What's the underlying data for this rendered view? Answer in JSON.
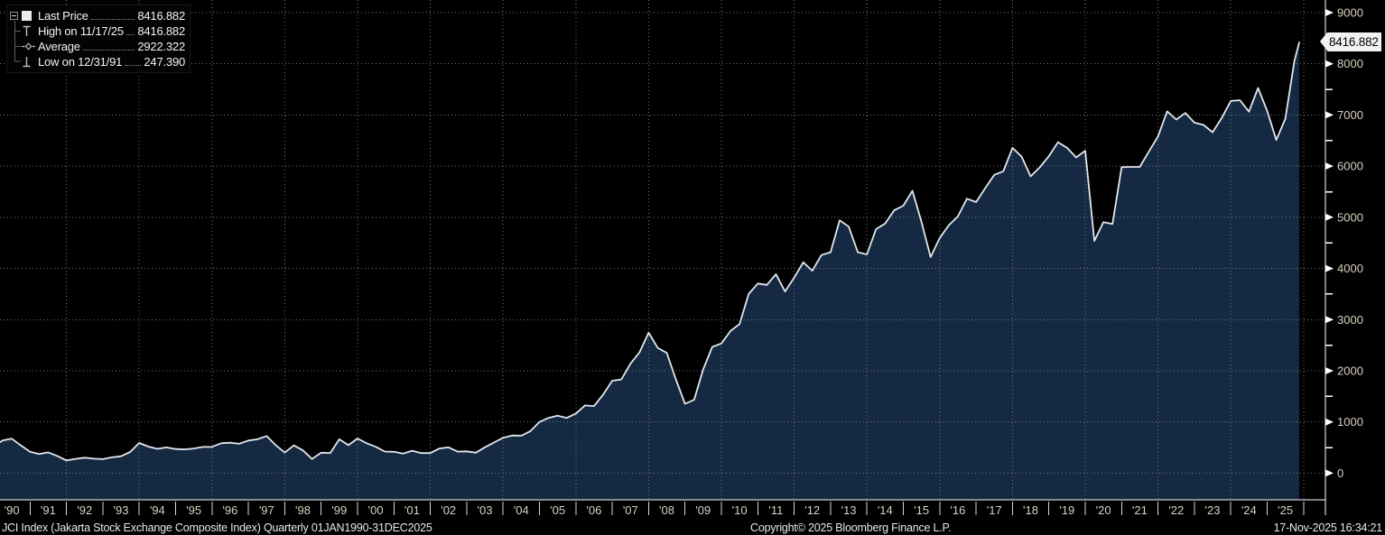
{
  "legend": {
    "items": [
      {
        "icon": "solid-square",
        "label": "Last Price",
        "value": "8416.882"
      },
      {
        "icon": "high-marker",
        "label": "High on 11/17/25",
        "value": "8416.882"
      },
      {
        "icon": "average-marker",
        "label": "Average",
        "value": "2922.322"
      },
      {
        "icon": "low-marker",
        "label": "Low on 12/31/91",
        "value": "247.390"
      }
    ]
  },
  "price_axis": {
    "last_label": "8416.882"
  },
  "footer": {
    "left": "JCI Index (Jakarta Stock Exchange Composite Index) Quarterly 01JAN1990-31DEC2025",
    "center": "Copyright© 2025 Bloomberg Finance L.P.",
    "right": "17-Nov-2025 16:34:21"
  },
  "colors": {
    "background": "#000000",
    "area_fill": "#152a42",
    "line": "#e2e7ec",
    "grid": "#6b7680",
    "axis": "#ffffff",
    "tick_label": "#d9d2bf",
    "price_tag_bg": "#f2f2f2",
    "price_tag_text": "#000000"
  },
  "chart_data": {
    "type": "area",
    "title": "JCI Index (Jakarta Stock Exchange Composite Index) Quarterly 01JAN1990-31DEC2025",
    "x_range_years": [
      1990,
      2026
    ],
    "ylim": [
      0,
      9000
    ],
    "y_tick_step": 1000,
    "y_minor_tick_step": 500,
    "grid": "dotted",
    "legend_position": "top-left",
    "y_tick_labels": [
      "0",
      "1000",
      "2000",
      "3000",
      "4000",
      "5000",
      "6000",
      "7000",
      "8000",
      "9000"
    ],
    "x_tick_labels": [
      "'90",
      "'91",
      "'92",
      "'93",
      "'94",
      "'95",
      "'96",
      "'97",
      "'98",
      "'99",
      "'00",
      "'01",
      "'02",
      "'03",
      "'04",
      "'05",
      "'06",
      "'07",
      "'08",
      "'09",
      "'10",
      "'11",
      "'12",
      "'13",
      "'14",
      "'15",
      "'16",
      "'17",
      "'18",
      "'19",
      "'20",
      "'21",
      "'22",
      "'23",
      "'24",
      "'25"
    ],
    "stats": {
      "last_price": 8416.882,
      "high": {
        "date": "11/17/25",
        "value": 8416.882
      },
      "average": 2922.322,
      "low": {
        "date": "12/31/91",
        "value": 247.39
      }
    },
    "series": [
      {
        "name": "JCI Index Last Price (quarterly)",
        "points": [
          [
            1990.0,
            520
          ],
          [
            1990.25,
            640
          ],
          [
            1990.5,
            671
          ],
          [
            1990.75,
            540
          ],
          [
            1991.0,
            418
          ],
          [
            1991.25,
            372
          ],
          [
            1991.5,
            405
          ],
          [
            1991.75,
            335
          ],
          [
            1992.0,
            247.39
          ],
          [
            1992.25,
            278
          ],
          [
            1992.5,
            301
          ],
          [
            1992.75,
            282
          ],
          [
            1993.0,
            274
          ],
          [
            1993.25,
            308
          ],
          [
            1993.5,
            330
          ],
          [
            1993.75,
            413
          ],
          [
            1994.0,
            589
          ],
          [
            1994.25,
            519
          ],
          [
            1994.5,
            475
          ],
          [
            1994.75,
            502
          ],
          [
            1995.0,
            470
          ],
          [
            1995.25,
            464
          ],
          [
            1995.5,
            481
          ],
          [
            1995.75,
            512
          ],
          [
            1996.0,
            514
          ],
          [
            1996.25,
            584
          ],
          [
            1996.5,
            594
          ],
          [
            1996.75,
            573
          ],
          [
            1997.0,
            637
          ],
          [
            1997.25,
            662
          ],
          [
            1997.5,
            725
          ],
          [
            1997.75,
            546
          ],
          [
            1998.0,
            402
          ],
          [
            1998.25,
            541
          ],
          [
            1998.5,
            445
          ],
          [
            1998.75,
            276
          ],
          [
            1999.0,
            398
          ],
          [
            1999.25,
            393
          ],
          [
            1999.5,
            662
          ],
          [
            1999.75,
            547
          ],
          [
            2000.0,
            677
          ],
          [
            2000.25,
            583
          ],
          [
            2000.5,
            515
          ],
          [
            2000.75,
            421
          ],
          [
            2001.0,
            416
          ],
          [
            2001.25,
            381
          ],
          [
            2001.5,
            437
          ],
          [
            2001.75,
            392
          ],
          [
            2002.0,
            392
          ],
          [
            2002.25,
            481
          ],
          [
            2002.5,
            505
          ],
          [
            2002.75,
            419
          ],
          [
            2003.0,
            425
          ],
          [
            2003.25,
            398
          ],
          [
            2003.5,
            505
          ],
          [
            2003.75,
            597
          ],
          [
            2004.0,
            692
          ],
          [
            2004.25,
            735
          ],
          [
            2004.5,
            732
          ],
          [
            2004.75,
            820
          ],
          [
            2005.0,
            1000
          ],
          [
            2005.25,
            1080
          ],
          [
            2005.5,
            1122
          ],
          [
            2005.75,
            1079
          ],
          [
            2006.0,
            1163
          ],
          [
            2006.25,
            1322
          ],
          [
            2006.5,
            1310
          ],
          [
            2006.75,
            1534
          ],
          [
            2007.0,
            1806
          ],
          [
            2007.25,
            1830
          ],
          [
            2007.5,
            2139
          ],
          [
            2007.75,
            2359
          ],
          [
            2008.0,
            2746
          ],
          [
            2008.25,
            2447
          ],
          [
            2008.5,
            2349
          ],
          [
            2008.75,
            1832
          ],
          [
            2009.0,
            1355
          ],
          [
            2009.25,
            1434
          ],
          [
            2009.5,
            2026
          ],
          [
            2009.75,
            2467
          ],
          [
            2010.0,
            2534
          ],
          [
            2010.25,
            2777
          ],
          [
            2010.5,
            2913
          ],
          [
            2010.75,
            3501
          ],
          [
            2011.0,
            3704
          ],
          [
            2011.25,
            3678
          ],
          [
            2011.5,
            3888
          ],
          [
            2011.75,
            3549
          ],
          [
            2012.0,
            3822
          ],
          [
            2012.25,
            4121
          ],
          [
            2012.5,
            3955
          ],
          [
            2012.75,
            4262
          ],
          [
            2013.0,
            4317
          ],
          [
            2013.25,
            4940
          ],
          [
            2013.5,
            4818
          ],
          [
            2013.75,
            4316
          ],
          [
            2014.0,
            4274
          ],
          [
            2014.25,
            4768
          ],
          [
            2014.5,
            4878
          ],
          [
            2014.75,
            5137
          ],
          [
            2015.0,
            5227
          ],
          [
            2015.25,
            5518
          ],
          [
            2015.5,
            4910
          ],
          [
            2015.75,
            4223
          ],
          [
            2016.0,
            4593
          ],
          [
            2016.25,
            4845
          ],
          [
            2016.5,
            5016
          ],
          [
            2016.75,
            5364
          ],
          [
            2017.0,
            5297
          ],
          [
            2017.25,
            5568
          ],
          [
            2017.5,
            5829
          ],
          [
            2017.75,
            5900
          ],
          [
            2018.0,
            6356
          ],
          [
            2018.25,
            6188
          ],
          [
            2018.5,
            5799
          ],
          [
            2018.75,
            5976
          ],
          [
            2019.0,
            6195
          ],
          [
            2019.25,
            6468
          ],
          [
            2019.5,
            6358
          ],
          [
            2019.75,
            6169
          ],
          [
            2020.0,
            6300
          ],
          [
            2020.25,
            4538
          ],
          [
            2020.5,
            4905
          ],
          [
            2020.75,
            4870
          ],
          [
            2021.0,
            5979
          ],
          [
            2021.25,
            5985
          ],
          [
            2021.5,
            5985
          ],
          [
            2021.75,
            6286
          ],
          [
            2022.0,
            6581
          ],
          [
            2022.25,
            7071
          ],
          [
            2022.5,
            6911
          ],
          [
            2022.75,
            7040
          ],
          [
            2023.0,
            6851
          ],
          [
            2023.25,
            6805
          ],
          [
            2023.5,
            6661
          ],
          [
            2023.75,
            6939
          ],
          [
            2024.0,
            7273
          ],
          [
            2024.25,
            7288
          ],
          [
            2024.5,
            7063
          ],
          [
            2024.75,
            7527
          ],
          [
            2025.0,
            7080
          ],
          [
            2025.25,
            6510
          ],
          [
            2025.5,
            6927
          ],
          [
            2025.75,
            8061
          ],
          [
            2025.88,
            8416.882
          ]
        ]
      }
    ]
  }
}
